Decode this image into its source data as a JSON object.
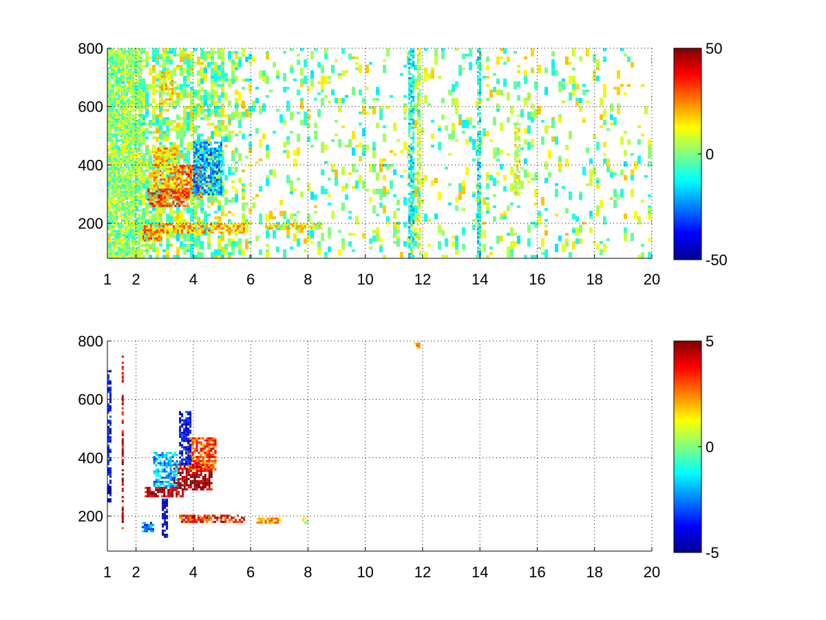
{
  "chart_data": [
    {
      "type": "heatmap",
      "title": "",
      "xlabel": "",
      "ylabel": "",
      "xlim": [
        1,
        20
      ],
      "ylim": [
        80,
        800
      ],
      "x_ticks": [
        1,
        2,
        4,
        6,
        8,
        10,
        12,
        14,
        16,
        18,
        20
      ],
      "y_ticks": [
        200,
        400,
        600,
        800
      ],
      "grid": true,
      "colormap": "jet",
      "colorbar": {
        "min": -50,
        "max": 50,
        "ticks": [
          -50,
          0,
          50
        ]
      },
      "regions": [
        {
          "x": [
            2.4,
            3.8
          ],
          "y": [
            260,
            320
          ],
          "value": 30
        },
        {
          "x": [
            3.3,
            4.3
          ],
          "y": [
            290,
            400
          ],
          "value": 28
        },
        {
          "x": [
            2.6,
            3.4
          ],
          "y": [
            320,
            460
          ],
          "value": 18
        },
        {
          "x": [
            4.0,
            5.0
          ],
          "y": [
            300,
            480
          ],
          "value": -22
        },
        {
          "x": [
            2.8,
            3.3
          ],
          "y": [
            600,
            720
          ],
          "value": 14
        },
        {
          "x": [
            2.2,
            5.8
          ],
          "y": [
            170,
            200
          ],
          "value": 20
        },
        {
          "x": [
            2.2,
            2.9
          ],
          "y": [
            140,
            180
          ],
          "value": 25
        },
        {
          "x": [
            1.0,
            2.2
          ],
          "y": [
            80,
            800
          ],
          "value": 3
        },
        {
          "x": [
            6.5,
            8.5
          ],
          "y": [
            180,
            200
          ],
          "value": 12
        },
        {
          "x": [
            11.5,
            11.7
          ],
          "y": [
            80,
            800
          ],
          "value": -12
        },
        {
          "x": [
            11.8,
            11.9
          ],
          "y": [
            80,
            800
          ],
          "value": 8
        },
        {
          "x": [
            13.9,
            14.0
          ],
          "y": [
            80,
            800
          ],
          "value": -10
        },
        {
          "x": [
            15.2,
            15.4
          ],
          "y": [
            300,
            550
          ],
          "value": 8
        }
      ]
    },
    {
      "type": "heatmap",
      "title": "",
      "xlabel": "",
      "ylabel": "",
      "xlim": [
        1,
        20
      ],
      "ylim": [
        80,
        800
      ],
      "x_ticks": [
        1,
        2,
        4,
        6,
        8,
        10,
        12,
        14,
        16,
        18,
        20
      ],
      "y_ticks": [
        200,
        400,
        600,
        800
      ],
      "grid": true,
      "colormap": "jet",
      "colorbar": {
        "min": -5,
        "max": 5,
        "ticks": [
          -5,
          0,
          5
        ]
      },
      "regions": [
        {
          "x": [
            2.3,
            3.6
          ],
          "y": [
            265,
            300
          ],
          "value": 4.5
        },
        {
          "x": [
            3.3,
            4.6
          ],
          "y": [
            290,
            380
          ],
          "value": 4.8
        },
        {
          "x": [
            3.8,
            4.8
          ],
          "y": [
            360,
            470
          ],
          "value": 3
        },
        {
          "x": [
            2.6,
            3.4
          ],
          "y": [
            300,
            420
          ],
          "value": -2
        },
        {
          "x": [
            3.5,
            3.9
          ],
          "y": [
            380,
            560
          ],
          "value": -4
        },
        {
          "x": [
            2.2,
            2.6
          ],
          "y": [
            150,
            180
          ],
          "value": -2.5
        },
        {
          "x": [
            2.9,
            3.1
          ],
          "y": [
            130,
            260
          ],
          "value": -4
        },
        {
          "x": [
            3.5,
            5.8
          ],
          "y": [
            180,
            205
          ],
          "value": 3.5
        },
        {
          "x": [
            6.2,
            7.0
          ],
          "y": [
            180,
            195
          ],
          "value": 2
        },
        {
          "x": [
            7.8,
            8.0
          ],
          "y": [
            180,
            195
          ],
          "value": 0.5
        },
        {
          "x": [
            11.7,
            11.9
          ],
          "y": [
            775,
            795
          ],
          "value": 2
        },
        {
          "x": [
            1.0,
            1.1
          ],
          "y": [
            250,
            700
          ],
          "value": -4
        },
        {
          "x": [
            1.5,
            1.55
          ],
          "y": [
            150,
            750
          ],
          "value": 4
        }
      ]
    }
  ]
}
